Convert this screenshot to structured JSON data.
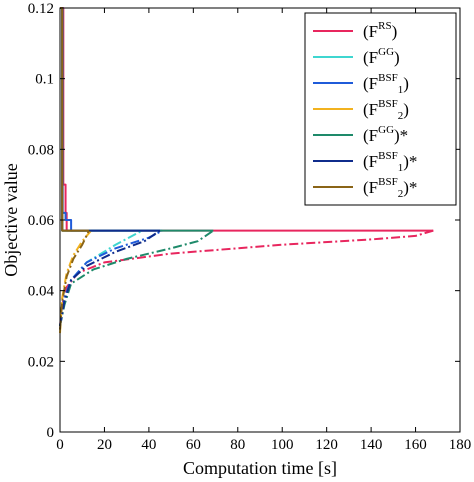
{
  "chart_data": {
    "type": "line",
    "xlabel": "Computation time [s]",
    "ylabel": "Objective value",
    "xlim": [
      0,
      180
    ],
    "ylim": [
      0,
      0.12
    ],
    "xticks": [
      0,
      20,
      40,
      60,
      80,
      100,
      120,
      140,
      160,
      180
    ],
    "yticks": [
      0,
      0.02,
      0.04,
      0.06,
      0.08,
      0.1,
      0.12
    ],
    "xtick_labels": [
      "0",
      "20",
      "40",
      "60",
      "80",
      "100",
      "120",
      "140",
      "160",
      "180"
    ],
    "ytick_labels": [
      "0",
      "0.02",
      "0.04",
      "0.06",
      "0.08",
      "0.1",
      "0.12"
    ],
    "grid": false,
    "legend_position": "top-right",
    "series": [
      {
        "name": "(F^RS)",
        "legend": {
          "base": "(F",
          "sup": "RS",
          "sub": "",
          "tail": ")"
        },
        "color": "#e8265e",
        "style": "solid",
        "x": [
          0,
          0.5,
          1.5,
          1.5,
          2.5,
          2.5,
          3,
          3,
          168
        ],
        "y": [
          0.12,
          0.12,
          0.12,
          0.07,
          0.07,
          0.062,
          0.062,
          0.057,
          0.057
        ]
      },
      {
        "name": "(F^RS) bound",
        "color": "#e8265e",
        "style": "dashdot",
        "x": [
          0,
          1,
          3,
          8,
          20,
          50,
          100,
          140,
          160,
          168
        ],
        "y": [
          0.03,
          0.036,
          0.041,
          0.045,
          0.048,
          0.0505,
          0.053,
          0.0545,
          0.0555,
          0.057
        ]
      },
      {
        "name": "(F^GG)",
        "legend": {
          "base": "(F",
          "sup": "GG",
          "sub": "",
          "tail": ")"
        },
        "color": "#3fd6d0",
        "style": "solid",
        "x": [
          0,
          0.5,
          1,
          1,
          37
        ],
        "y": [
          0.12,
          0.12,
          0.12,
          0.057,
          0.057
        ]
      },
      {
        "name": "(F^GG) bound",
        "color": "#3fd6d0",
        "style": "dashdot",
        "x": [
          0,
          2,
          5,
          12,
          25,
          37
        ],
        "y": [
          0.03,
          0.038,
          0.043,
          0.048,
          0.053,
          0.057
        ]
      },
      {
        "name": "(F^BSF_1)",
        "legend": {
          "base": "(F",
          "sup": "BSF",
          "sub": "1",
          "tail": ")"
        },
        "color": "#1f5bd9",
        "style": "solid",
        "x": [
          0,
          0.5,
          1.2,
          1.2,
          2.5,
          2.5,
          5,
          5,
          46
        ],
        "y": [
          0.12,
          0.12,
          0.12,
          0.062,
          0.062,
          0.06,
          0.06,
          0.057,
          0.057
        ]
      },
      {
        "name": "(F^BSF_1) bound",
        "color": "#1f5bd9",
        "style": "dashdot",
        "x": [
          0,
          2,
          5,
          12,
          25,
          40,
          46
        ],
        "y": [
          0.03,
          0.038,
          0.043,
          0.048,
          0.052,
          0.055,
          0.057
        ]
      },
      {
        "name": "(F^BSF_2)",
        "legend": {
          "base": "(F",
          "sup": "BSF",
          "sub": "2",
          "tail": ")"
        },
        "color": "#f2b21f",
        "style": "solid",
        "x": [
          0,
          0.5,
          1,
          1,
          14
        ],
        "y": [
          0.12,
          0.12,
          0.12,
          0.057,
          0.057
        ]
      },
      {
        "name": "(F^BSF_2) bound",
        "color": "#f2b21f",
        "style": "dashdot",
        "x": [
          0,
          1,
          3,
          6,
          10,
          14
        ],
        "y": [
          0.028,
          0.038,
          0.045,
          0.05,
          0.054,
          0.057
        ]
      },
      {
        "name": "(F^GG)*",
        "legend": {
          "base": "(F",
          "sup": "GG",
          "sub": "",
          "tail": ")*"
        },
        "color": "#1e8a6a",
        "style": "solid",
        "x": [
          0,
          0.5,
          1,
          1,
          69
        ],
        "y": [
          0.12,
          0.12,
          0.12,
          0.057,
          0.057
        ]
      },
      {
        "name": "(F^GG)* bound",
        "color": "#1e8a6a",
        "style": "dashdot",
        "x": [
          0,
          2,
          5,
          15,
          30,
          50,
          62,
          69
        ],
        "y": [
          0.03,
          0.036,
          0.042,
          0.046,
          0.049,
          0.052,
          0.054,
          0.057
        ]
      },
      {
        "name": "(F^BSF_1)*",
        "legend": {
          "base": "(F",
          "sup": "BSF",
          "sub": "1",
          "tail": ")*"
        },
        "color": "#0f2c8c",
        "style": "solid",
        "x": [
          0,
          0.5,
          1,
          1,
          45
        ],
        "y": [
          0.12,
          0.12,
          0.12,
          0.057,
          0.057
        ]
      },
      {
        "name": "(F^BSF_1)* bound",
        "color": "#0f2c8c",
        "style": "dashdot",
        "x": [
          0,
          2,
          5,
          12,
          25,
          38,
          45
        ],
        "y": [
          0.03,
          0.037,
          0.043,
          0.047,
          0.051,
          0.054,
          0.057
        ]
      },
      {
        "name": "(F^BSF_2)*",
        "legend": {
          "base": "(F",
          "sup": "BSF",
          "sub": "2",
          "tail": ")*"
        },
        "color": "#8a6417",
        "style": "solid",
        "x": [
          0,
          0.5,
          1,
          1,
          13
        ],
        "y": [
          0.12,
          0.12,
          0.12,
          0.057,
          0.057
        ]
      },
      {
        "name": "(F^BSF_2)* bound",
        "color": "#8a6417",
        "style": "dashdot",
        "x": [
          0,
          1,
          3,
          6,
          10,
          13
        ],
        "y": [
          0.029,
          0.037,
          0.044,
          0.049,
          0.053,
          0.057
        ]
      }
    ]
  }
}
